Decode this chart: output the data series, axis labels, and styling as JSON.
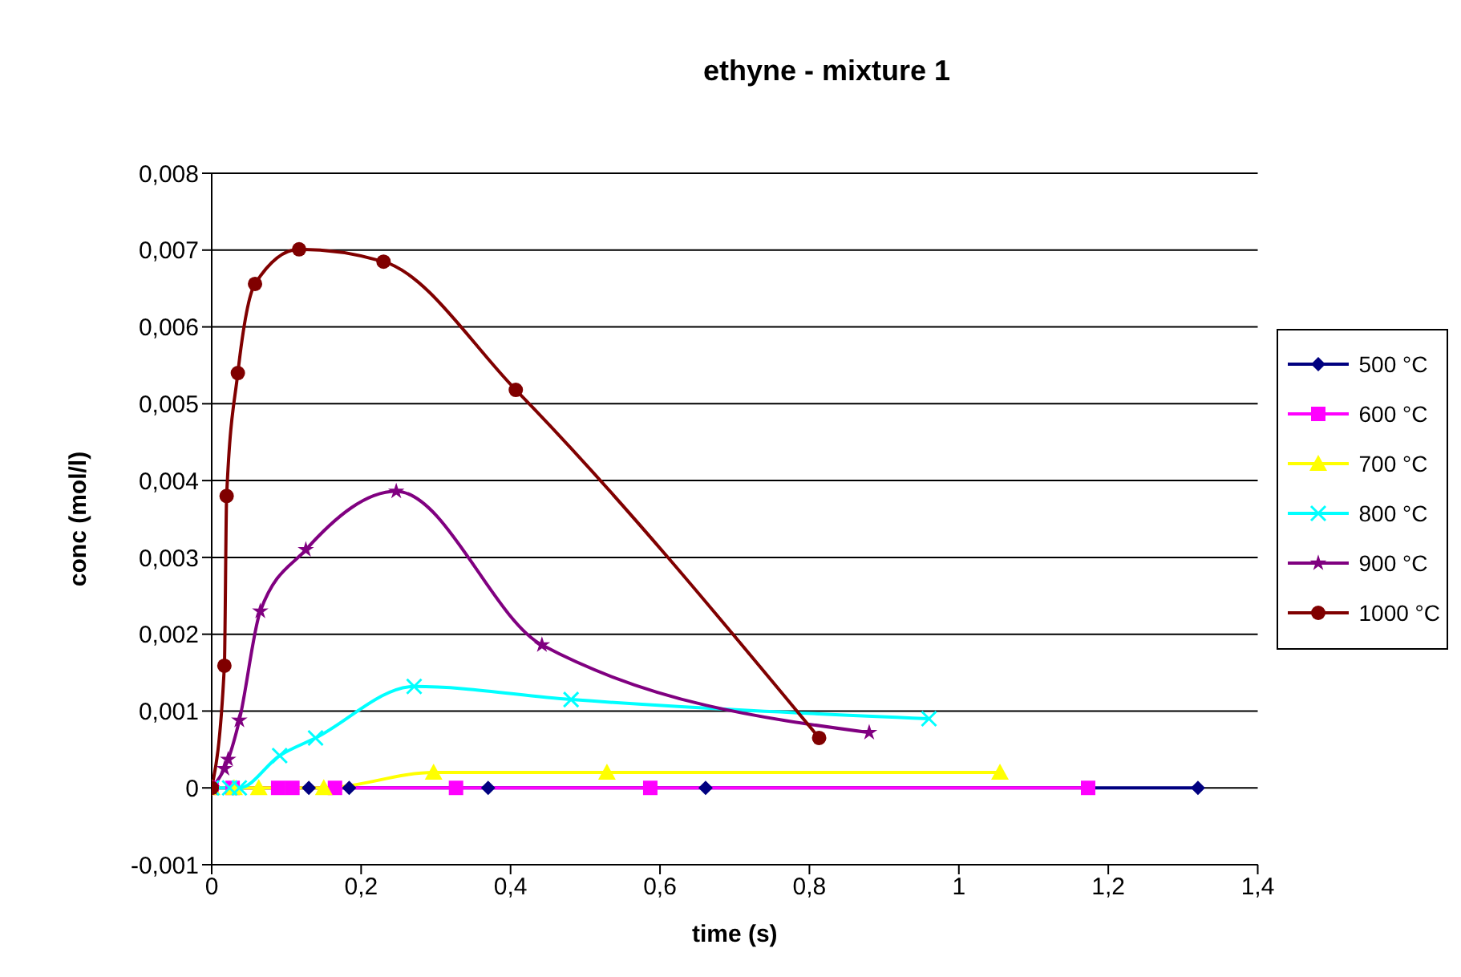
{
  "chart_data": {
    "type": "line",
    "title": "ethyne - mixture 1",
    "xlabel": "time (s)",
    "ylabel": "conc (mol/l)",
    "xlim": [
      0,
      1.4
    ],
    "xticks": [
      0,
      {
        "value": 0.2,
        "label": "0,2"
      },
      {
        "value": 0.4,
        "label": "0,4"
      },
      {
        "value": 0.6,
        "label": "0,6"
      },
      {
        "value": 0.8,
        "label": "0,8"
      },
      1,
      {
        "value": 1.2,
        "label": "1,2"
      },
      {
        "value": 1.4,
        "label": "1,4"
      }
    ],
    "ylim": [
      -0.001,
      0.008
    ],
    "yticks": [
      {
        "value": -0.001,
        "label": "-0,001"
      },
      0,
      {
        "value": 0.001,
        "label": "0,001"
      },
      {
        "value": 0.002,
        "label": "0,002"
      },
      {
        "value": 0.003,
        "label": "0,003"
      },
      {
        "value": 0.004,
        "label": "0,004"
      },
      {
        "value": 0.005,
        "label": "0,005"
      },
      {
        "value": 0.006,
        "label": "0,006"
      },
      {
        "value": 0.007,
        "label": "0,007"
      },
      {
        "value": 0.008,
        "label": "0,008"
      }
    ],
    "grid": "y",
    "legend": "right",
    "series": [
      {
        "name": "500 °C",
        "color": "#000080",
        "marker": "diamond",
        "x": [
          0,
          0.13,
          0.184,
          0.37,
          0.661,
          1.32
        ],
        "values": [
          0,
          0,
          0,
          0,
          0,
          0
        ]
      },
      {
        "name": "600 °C",
        "color": "#ff00ff",
        "marker": "square",
        "x": [
          0,
          0.028,
          0.089,
          0.108,
          0.165,
          0.327,
          0.587,
          1.173
        ],
        "values": [
          0,
          0,
          0,
          0,
          0,
          0,
          0,
          0
        ]
      },
      {
        "name": "700 °C",
        "color": "#ffff00",
        "marker": "triangle",
        "x": [
          0,
          0.03,
          0.063,
          0.15,
          0.297,
          0.529,
          1.055
        ],
        "values": [
          0,
          0,
          0,
          0,
          0.0002,
          0.0002,
          0.0002
        ]
      },
      {
        "name": "800 °C",
        "color": "#00ffff",
        "marker": "cross",
        "x": [
          0,
          0.024,
          0.037,
          0.091,
          0.139,
          0.271,
          0.481,
          0.96
        ],
        "values": [
          0,
          0,
          0,
          0.00042,
          0.00065,
          0.00132,
          0.00115,
          0.0009
        ]
      },
      {
        "name": "900 °C",
        "color": "#800080",
        "marker": "star",
        "x": [
          0,
          0.017,
          0.022,
          0.037,
          0.065,
          0.126,
          0.247,
          0.442,
          0.88
        ],
        "values": [
          0,
          0.00025,
          0.00037,
          0.00088,
          0.0023,
          0.0031,
          0.00386,
          0.00186,
          0.00072
        ]
      },
      {
        "name": "1000 °C",
        "color": "#800000",
        "marker": "circle",
        "x": [
          0,
          0.017,
          0.02,
          0.035,
          0.058,
          0.117,
          0.23,
          0.407,
          0.813
        ],
        "values": [
          0,
          0.00159,
          0.0038,
          0.0054,
          0.00656,
          0.00701,
          0.00685,
          0.00518,
          0.00065
        ]
      }
    ]
  }
}
